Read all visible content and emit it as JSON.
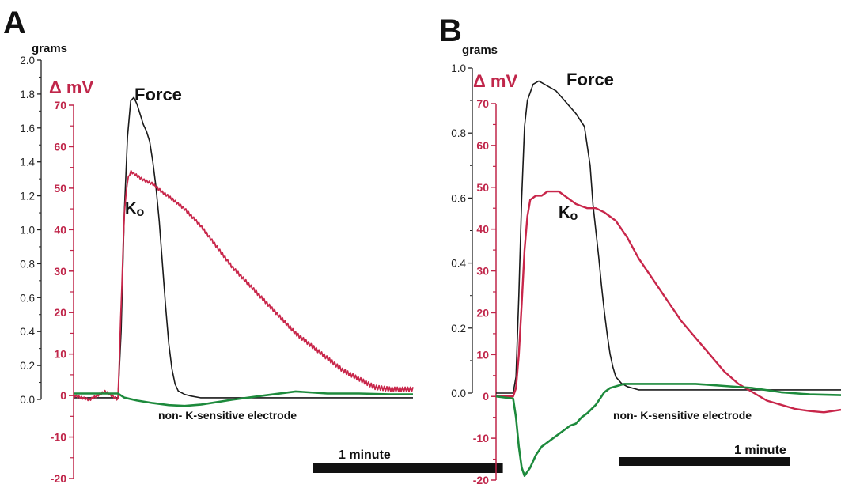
{
  "colors": {
    "force": "#1a1a1a",
    "ko": "#c8264a",
    "control": "#1d8a3c",
    "mv_axis": "#c0264a",
    "scale_bar": "#111111"
  },
  "chart_data": [
    {
      "type": "line",
      "panel": "A",
      "left_axis": {
        "unit": "grams",
        "ylim": [
          0,
          2.0
        ],
        "ticks": [
          "0.0",
          "0.2",
          "0.4",
          "0.6",
          "0.8",
          "1.0",
          "1.2",
          "1.4",
          "1.6",
          "1.8",
          "2.0"
        ]
      },
      "right_axis": {
        "unit": "Δ mV",
        "ylim": [
          -20,
          70
        ],
        "ticks": [
          "-20",
          "-10",
          "0",
          "10",
          "20",
          "30",
          "40",
          "50",
          "60",
          "70"
        ]
      },
      "x_unit": "s",
      "scale_bar": {
        "label": "1 minute",
        "seconds": 60
      },
      "annotations": {
        "force": "Force",
        "ko": "K",
        "ko_sub": "o",
        "control": "non- K-sensitive electrode"
      },
      "series": [
        {
          "name": "Force",
          "axis": "left",
          "x": [
            0,
            14,
            15,
            16,
            17,
            18,
            19,
            20,
            21,
            22,
            23,
            24,
            25,
            26,
            27,
            28,
            29,
            30,
            31,
            32,
            33,
            35,
            37,
            40,
            50,
            60,
            70,
            80,
            95,
            107
          ],
          "values": [
            0.01,
            0.01,
            0.4,
            1.1,
            1.55,
            1.76,
            1.78,
            1.74,
            1.68,
            1.62,
            1.58,
            1.52,
            1.4,
            1.25,
            1.05,
            0.8,
            0.55,
            0.33,
            0.18,
            0.09,
            0.05,
            0.03,
            0.02,
            0.01,
            0.01,
            0.01,
            0.01,
            0.01,
            0.01,
            0.01
          ]
        },
        {
          "name": "Ko",
          "axis": "right",
          "x": [
            0,
            5,
            10,
            14,
            15,
            16,
            17,
            18,
            20,
            22,
            25,
            28,
            30,
            35,
            40,
            45,
            50,
            55,
            60,
            65,
            70,
            75,
            80,
            85,
            90,
            95,
            100,
            107
          ],
          "values": [
            0,
            -1,
            1,
            -1,
            22,
            44,
            52,
            54,
            53,
            52,
            51,
            49,
            48,
            45,
            41,
            36,
            31,
            27,
            23,
            19,
            15,
            12,
            9,
            6,
            4,
            2,
            1.5,
            1.5
          ]
        },
        {
          "name": "non-K-sensitive",
          "axis": "right",
          "x": [
            0,
            14,
            16,
            20,
            25,
            30,
            35,
            40,
            50,
            60,
            70,
            80,
            90,
            100,
            107
          ],
          "values": [
            0.5,
            0.5,
            -0.5,
            -1.2,
            -1.8,
            -2.3,
            -2.5,
            -2.2,
            -1,
            0,
            1,
            0.5,
            0.5,
            0.3,
            0.3
          ]
        }
      ]
    },
    {
      "type": "line",
      "panel": "B",
      "left_axis": {
        "unit": "grams",
        "ylim": [
          0,
          1.0
        ],
        "ticks": [
          "0.0",
          "0.2",
          "0.4",
          "0.6",
          "0.8",
          "1.0"
        ]
      },
      "right_axis": {
        "unit": "Δ mV",
        "ylim": [
          -20,
          70
        ],
        "ticks": [
          "-20",
          "-10",
          "0",
          "10",
          "20",
          "30",
          "40",
          "50",
          "60",
          "70"
        ]
      },
      "x_unit": "s",
      "scale_bar": {
        "label": "1 minute",
        "seconds": 60
      },
      "annotations": {
        "force": "Force",
        "ko": "K",
        "ko_sub": "o",
        "control": "non- K-sensitive electrode"
      },
      "series": [
        {
          "name": "Force",
          "axis": "left",
          "x": [
            0,
            6,
            7,
            8,
            9,
            10,
            11,
            13,
            15,
            17,
            19,
            21,
            23,
            25,
            28,
            31,
            33,
            34,
            35,
            36,
            37,
            38,
            39,
            40,
            41,
            42,
            44,
            46,
            50,
            60,
            70,
            80,
            90,
            100,
            121
          ],
          "values": [
            0,
            0,
            0.05,
            0.3,
            0.6,
            0.82,
            0.9,
            0.95,
            0.96,
            0.95,
            0.94,
            0.93,
            0.91,
            0.89,
            0.86,
            0.82,
            0.7,
            0.58,
            0.5,
            0.42,
            0.33,
            0.25,
            0.18,
            0.12,
            0.08,
            0.05,
            0.03,
            0.02,
            0.01,
            0.01,
            0.01,
            0.01,
            0.01,
            0.01,
            0.01
          ]
        },
        {
          "name": "Ko",
          "axis": "right",
          "x": [
            0,
            6,
            7,
            8,
            9,
            10,
            11,
            12,
            14,
            16,
            18,
            20,
            22,
            24,
            26,
            28,
            30,
            32,
            35,
            38,
            42,
            46,
            50,
            55,
            60,
            65,
            70,
            75,
            80,
            85,
            90,
            95,
            100,
            105,
            110,
            115,
            121
          ],
          "values": [
            0,
            0,
            2,
            10,
            22,
            35,
            43,
            47,
            48,
            48,
            49,
            49,
            49,
            48,
            47,
            46,
            45.5,
            45,
            45,
            44,
            42,
            38,
            33,
            28,
            23,
            18,
            14,
            10,
            6,
            3,
            1,
            -1,
            -2,
            -3,
            -3.5,
            -3.8,
            -3.2
          ]
        },
        {
          "name": "non-K-sensitive",
          "axis": "right",
          "x": [
            0,
            6,
            7,
            8,
            9,
            10,
            12,
            14,
            16,
            18,
            20,
            22,
            24,
            26,
            28,
            30,
            32,
            35,
            38,
            40,
            45,
            50,
            60,
            70,
            80,
            90,
            100,
            110,
            121
          ],
          "values": [
            0,
            -0.5,
            -5,
            -12,
            -17,
            -19,
            -17,
            -14,
            -12,
            -11,
            -10,
            -9,
            -8,
            -7,
            -6.5,
            -5,
            -4,
            -2,
            1,
            2,
            3,
            3,
            3,
            3,
            2.5,
            2,
            1,
            0.5,
            0.3
          ]
        }
      ]
    }
  ]
}
